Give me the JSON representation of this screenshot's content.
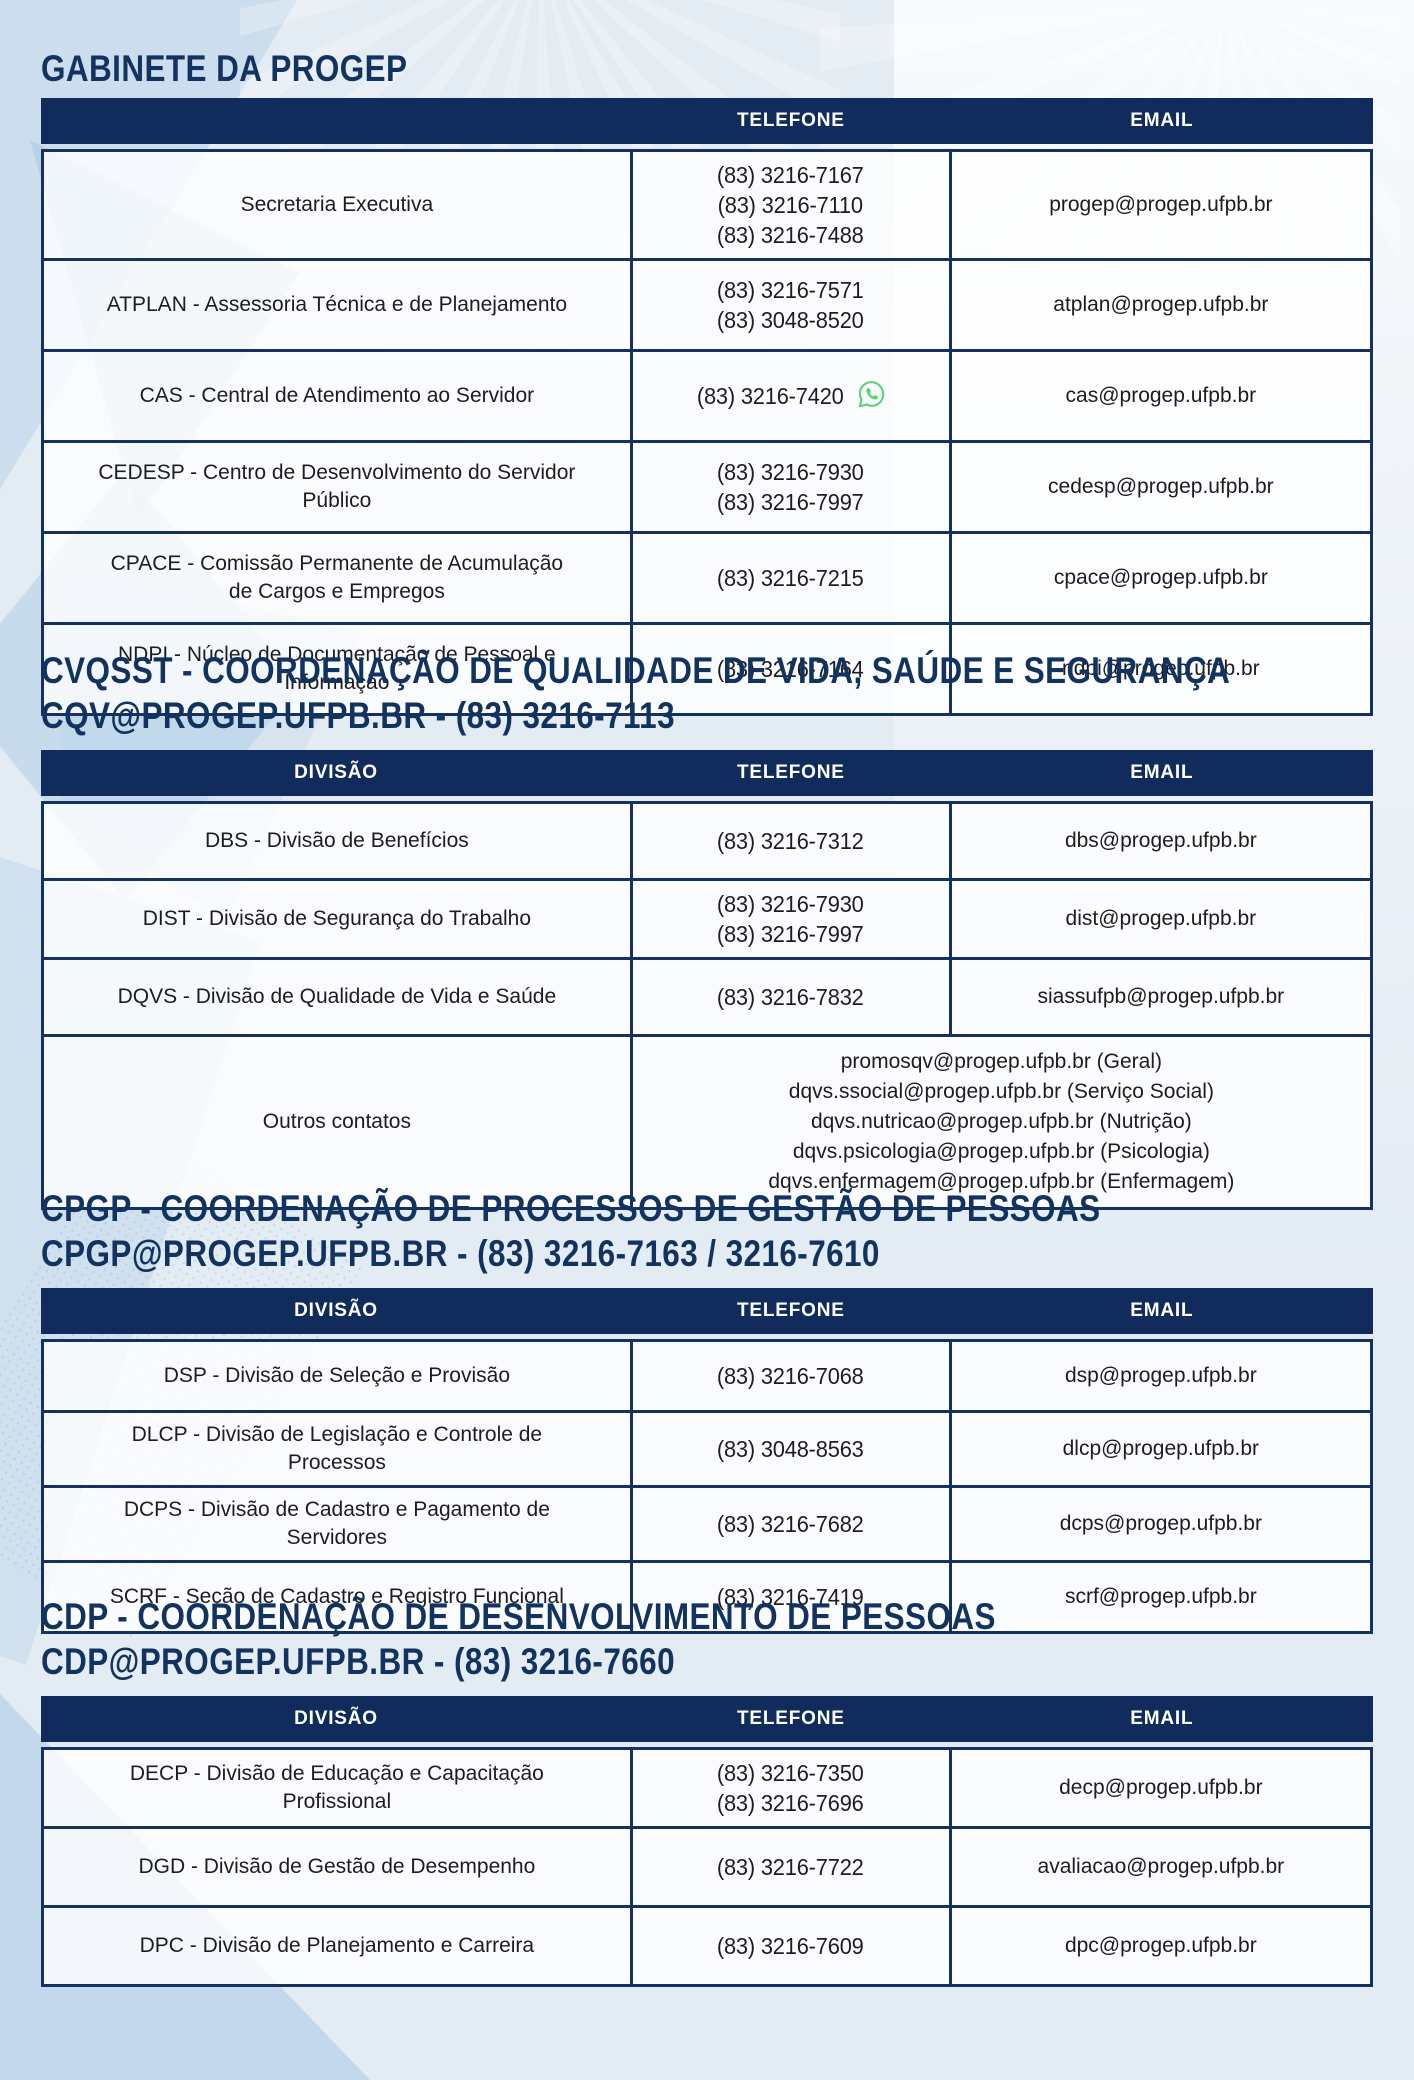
{
  "colors": {
    "navy_header": "#112c5c",
    "table_border": "#15325f",
    "heading_text": "#12325f",
    "whatsapp_green": "#5ad273",
    "background": "#e3ebf3"
  },
  "icons": {
    "whatsapp": "whatsapp-icon"
  },
  "sections": [
    {
      "id": "gabinete",
      "title": "GABINETE DA PROGEP",
      "subtitle": "",
      "columns": [
        "",
        "TELEFONE",
        "EMAIL"
      ],
      "rows": [
        {
          "division": "Secretaria Executiva",
          "phone": "(83) 3216-7167\n(83) 3216-7110\n(83) 3216-7488",
          "email": "progep@progep.ufpb.br"
        },
        {
          "division": "ATPLAN - Assessoria Técnica e de Planejamento",
          "phone": "(83) 3216-7571\n(83) 3048-8520",
          "email": "atplan@progep.ufpb.br"
        },
        {
          "division": "CAS - Central de Atendimento ao Servidor",
          "phone": "(83) 3216-7420",
          "whatsapp": true,
          "email": "cas@progep.ufpb.br"
        },
        {
          "division": "CEDESP - Centro de Desenvolvimento do Servidor\nPúblico",
          "phone": "(83) 3216-7930\n(83) 3216-7997",
          "email": "cedesp@progep.ufpb.br"
        },
        {
          "division": "CPACE - Comissão Permanente de Acumulação\nde Cargos e Empregos",
          "phone": "(83) 3216-7215",
          "email": "cpace@progep.ufpb.br"
        },
        {
          "division": "NDPI - Núcleo de Documentação de Pessoal e\nInformação",
          "phone": "(83) 3216-7164",
          "email": "ndpi@progep.ufpb.br"
        }
      ]
    },
    {
      "id": "cvqsst",
      "title": "CVQSST - COORDENAÇÃO DE QUALIDADE DE VIDA, SAÚDE E SEGURANÇA",
      "subtitle": "CQV@PROGEP.UFPB.BR - (83) 3216-7113",
      "columns": [
        "DIVISÃO",
        "TELEFONE",
        "EMAIL"
      ],
      "rows": [
        {
          "division": "DBS - Divisão de Benefícios",
          "phone": "(83) 3216-7312",
          "email": "dbs@progep.ufpb.br"
        },
        {
          "division": "DIST - Divisão de Segurança do Trabalho",
          "phone": "(83) 3216-7930\n(83) 3216-7997",
          "email": "dist@progep.ufpb.br"
        },
        {
          "division": "DQVS - Divisão de Qualidade de Vida e Saúde",
          "phone": "(83) 3216-7832",
          "email": "siassufpb@progep.ufpb.br"
        },
        {
          "division": "Outros contatos",
          "contacts": "promosqv@progep.ufpb.br (Geral)\ndqvs.ssocial@progep.ufpb.br (Serviço Social)\ndqvs.nutricao@progep.ufpb.br (Nutrição)\ndqvs.psicologia@progep.ufpb.br (Psicologia)\ndqvs.enfermagem@progep.ufpb.br (Enfermagem)"
        }
      ]
    },
    {
      "id": "cpgp",
      "title": "CPGP - COORDENAÇÃO DE PROCESSOS DE GESTÃO DE PESSOAS",
      "subtitle": "CPGP@PROGEP.UFPB.BR - (83) 3216-7163 / 3216-7610",
      "columns": [
        "DIVISÃO",
        "TELEFONE",
        "EMAIL"
      ],
      "rows": [
        {
          "division": "DSP - Divisão de Seleção e Provisão",
          "phone": "(83) 3216-7068",
          "email": "dsp@progep.ufpb.br"
        },
        {
          "division": "DLCP - Divisão de Legislação e Controle de\nProcessos",
          "phone": "(83) 3048-8563",
          "email": "dlcp@progep.ufpb.br"
        },
        {
          "division": "DCPS - Divisão de Cadastro e Pagamento de\nServidores",
          "phone": "(83) 3216-7682",
          "email": "dcps@progep.ufpb.br"
        },
        {
          "division": "SCRF - Seção de Cadastro e Registro Funcional",
          "phone": "(83) 3216-7419",
          "email": "scrf@progep.ufpb.br"
        }
      ]
    },
    {
      "id": "cdp",
      "title": "CDP - COORDENAÇÃO DE DESENVOLVIMENTO DE PESSOAS",
      "subtitle": "CDP@PROGEP.UFPB.BR - (83) 3216-7660",
      "columns": [
        "DIVISÃO",
        "TELEFONE",
        "EMAIL"
      ],
      "rows": [
        {
          "division": "DECP - Divisão de Educação e Capacitação\nProfissional",
          "phone": "(83) 3216-7350\n(83) 3216-7696",
          "email": "decp@progep.ufpb.br"
        },
        {
          "division": "DGD - Divisão de Gestão de Desempenho",
          "phone": "(83) 3216-7722",
          "email": "avaliacao@progep.ufpb.br"
        },
        {
          "division": "DPC - Divisão de Planejamento e Carreira",
          "phone": "(83) 3216-7609",
          "email": "dpc@progep.ufpb.br"
        }
      ]
    }
  ]
}
